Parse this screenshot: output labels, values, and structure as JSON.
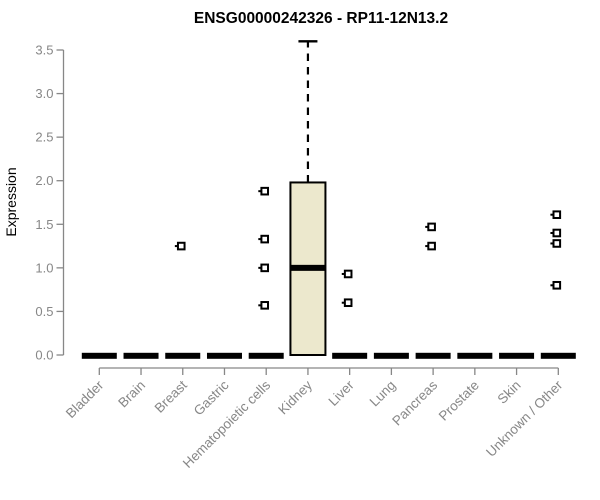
{
  "chart_data": {
    "type": "boxplot",
    "title": "ENSG00000242326 - RP11-12N13.2",
    "ylabel": "Expression",
    "xlabel": "",
    "ylim": [
      0,
      3.5
    ],
    "grid": false,
    "legend": "none",
    "yticks": [
      0.0,
      0.5,
      1.0,
      1.5,
      2.0,
      2.5,
      3.0,
      3.5
    ],
    "ytick_labels": [
      "0.0",
      "0.5",
      "1.0",
      "1.5",
      "2.0",
      "2.5",
      "3.0",
      "3.5"
    ],
    "categories": [
      "Bladder",
      "Brain",
      "Breast",
      "Gastric",
      "Hematopoietic cells",
      "Kidney",
      "Liver",
      "Lung",
      "Pancreas",
      "Prostate",
      "Skin",
      "Unknown / Other"
    ],
    "boxes": [
      {
        "category": "Bladder",
        "q1": 0,
        "median": 0,
        "q3": 0,
        "whisker_low": 0,
        "whisker_high": 0,
        "outliers": []
      },
      {
        "category": "Brain",
        "q1": 0,
        "median": 0,
        "q3": 0,
        "whisker_low": 0,
        "whisker_high": 0,
        "outliers": []
      },
      {
        "category": "Breast",
        "q1": 0,
        "median": 0,
        "q3": 0,
        "whisker_low": 0,
        "whisker_high": 0,
        "outliers": [
          1.25
        ]
      },
      {
        "category": "Gastric",
        "q1": 0,
        "median": 0,
        "q3": 0,
        "whisker_low": 0,
        "whisker_high": 0,
        "outliers": []
      },
      {
        "category": "Hematopoietic cells",
        "q1": 0,
        "median": 0,
        "q3": 0,
        "whisker_low": 0,
        "whisker_high": 0,
        "outliers": [
          1.88,
          1.33,
          1.0,
          0.57
        ]
      },
      {
        "category": "Kidney",
        "q1": 0,
        "median": 1.0,
        "q3": 1.98,
        "whisker_low": 0,
        "whisker_high": 3.6,
        "outliers": []
      },
      {
        "category": "Liver",
        "q1": 0,
        "median": 0,
        "q3": 0,
        "whisker_low": 0,
        "whisker_high": 0,
        "outliers": [
          0.93,
          0.6
        ]
      },
      {
        "category": "Lung",
        "q1": 0,
        "median": 0,
        "q3": 0,
        "whisker_low": 0,
        "whisker_high": 0,
        "outliers": []
      },
      {
        "category": "Pancreas",
        "q1": 0,
        "median": 0,
        "q3": 0,
        "whisker_low": 0,
        "whisker_high": 0,
        "outliers": [
          1.47,
          1.25
        ]
      },
      {
        "category": "Prostate",
        "q1": 0,
        "median": 0,
        "q3": 0,
        "whisker_low": 0,
        "whisker_high": 0,
        "outliers": []
      },
      {
        "category": "Skin",
        "q1": 0,
        "median": 0,
        "q3": 0,
        "whisker_low": 0,
        "whisker_high": 0,
        "outliers": []
      },
      {
        "category": "Unknown / Other",
        "q1": 0,
        "median": 0,
        "q3": 0,
        "whisker_low": 0,
        "whisker_high": 0,
        "outliers": [
          1.61,
          1.4,
          1.28,
          0.8
        ]
      }
    ],
    "colors": {
      "box_fill": "#ece8cd",
      "box_border": "#000000",
      "median": "#000000",
      "whisker": "#000000",
      "outlier": "#000000",
      "axis": "#878787",
      "tick_label": "#878787",
      "title": "#000000"
    }
  }
}
